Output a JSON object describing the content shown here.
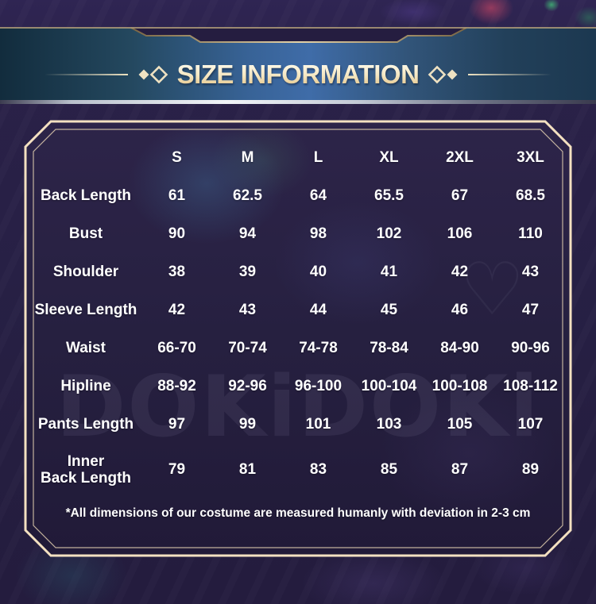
{
  "title": "SIZE INFORMATION",
  "watermark": "DOKiDOKi",
  "watermark_heart": "♡",
  "icons": {
    "title_ornament": "double-diamond-icon",
    "title_ornament_line": "horizontal-rule"
  },
  "colors": {
    "banner_blue_center": "#3f6ca8",
    "banner_teal_edge": "#122c3d",
    "gold_trim": "#e3d2a8",
    "panel_border_cream": "#f4e1c1",
    "panel_background": "#262040",
    "page_background": "#272045",
    "table_text": "#ffffff",
    "title_gradient_top": "#fdf7e4",
    "title_gradient_bottom": "#e6c88f",
    "silver_edge": "#f2f5f9"
  },
  "chart_data": {
    "type": "table",
    "title": "SIZE INFORMATION",
    "columns": [
      "S",
      "M",
      "L",
      "XL",
      "2XL",
      "3XL"
    ],
    "rows": [
      {
        "label": "Back Length",
        "values": [
          "61",
          "62.5",
          "64",
          "65.5",
          "67",
          "68.5"
        ]
      },
      {
        "label": "Bust",
        "values": [
          "90",
          "94",
          "98",
          "102",
          "106",
          "110"
        ]
      },
      {
        "label": "Shoulder",
        "values": [
          "38",
          "39",
          "40",
          "41",
          "42",
          "43"
        ]
      },
      {
        "label": "Sleeve Length",
        "values": [
          "42",
          "43",
          "44",
          "45",
          "46",
          "47"
        ]
      },
      {
        "label": "Waist",
        "values": [
          "66-70",
          "70-74",
          "74-78",
          "78-84",
          "84-90",
          "90-96"
        ]
      },
      {
        "label": "Hipline",
        "values": [
          "88-92",
          "92-96",
          "96-100",
          "100-104",
          "100-108",
          "108-112"
        ]
      },
      {
        "label": "Pants Length",
        "values": [
          "97",
          "99",
          "101",
          "103",
          "105",
          "107"
        ]
      },
      {
        "label": "Inner Back Length",
        "lines": [
          "Inner",
          "Back Length"
        ],
        "tall": true,
        "values": [
          "79",
          "81",
          "83",
          "85",
          "87",
          "89"
        ]
      }
    ],
    "footnote": "*All dimensions of our costume are measured humanly with deviation in 2-3 cm",
    "units_note": "cm"
  }
}
